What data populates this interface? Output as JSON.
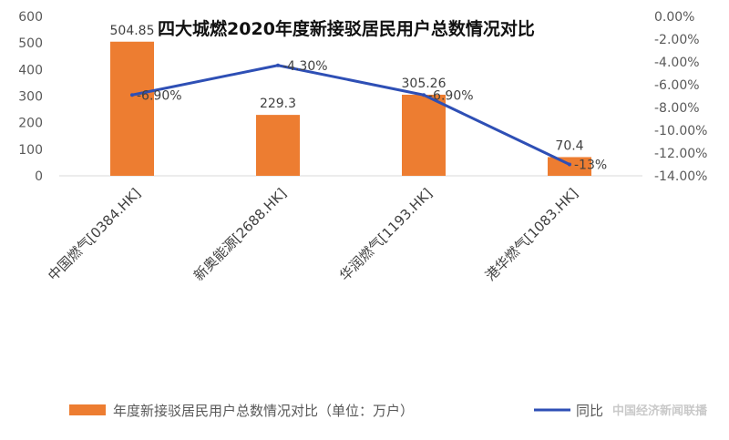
{
  "chart_data": {
    "type": "bar",
    "title": "四大城燃2020年度新接驳居民用户总数情况对比",
    "categories": [
      "中国燃气[0384.HK]",
      "新奥能源[2688.HK]",
      "华润燃气[1193.HK]",
      "港华燃气[1083.HK]"
    ],
    "series": [
      {
        "name": "年度新接驳居民用户总数情况对比（单位：万户）",
        "type": "bar",
        "axis": "left",
        "values": [
          504.85,
          229.3,
          305.26,
          70.4
        ],
        "labels": [
          "504.85",
          "229.3",
          "305.26",
          "70.4"
        ],
        "color": "#ED7D31"
      },
      {
        "name": "同比",
        "type": "line",
        "axis": "right",
        "values": [
          -6.9,
          -4.3,
          -6.9,
          -13.0
        ],
        "labels": [
          "-6.90%",
          "-4.30%",
          "-6.90%",
          "-13%"
        ],
        "color": "#2E4FB5"
      }
    ],
    "y_left": {
      "min": 0,
      "max": 600,
      "step": 100,
      "ticks": [
        "0",
        "100",
        "200",
        "300",
        "400",
        "500",
        "600"
      ]
    },
    "y_right": {
      "min": -14,
      "max": 0,
      "step": 2,
      "ticks": [
        "0.00%",
        "-2.00%",
        "-4.00%",
        "-6.00%",
        "-8.00%",
        "-10.00%",
        "-12.00%",
        "-14.00%"
      ]
    },
    "grid": false,
    "legend_position": "bottom"
  },
  "watermark": "中国经济新闻联播"
}
